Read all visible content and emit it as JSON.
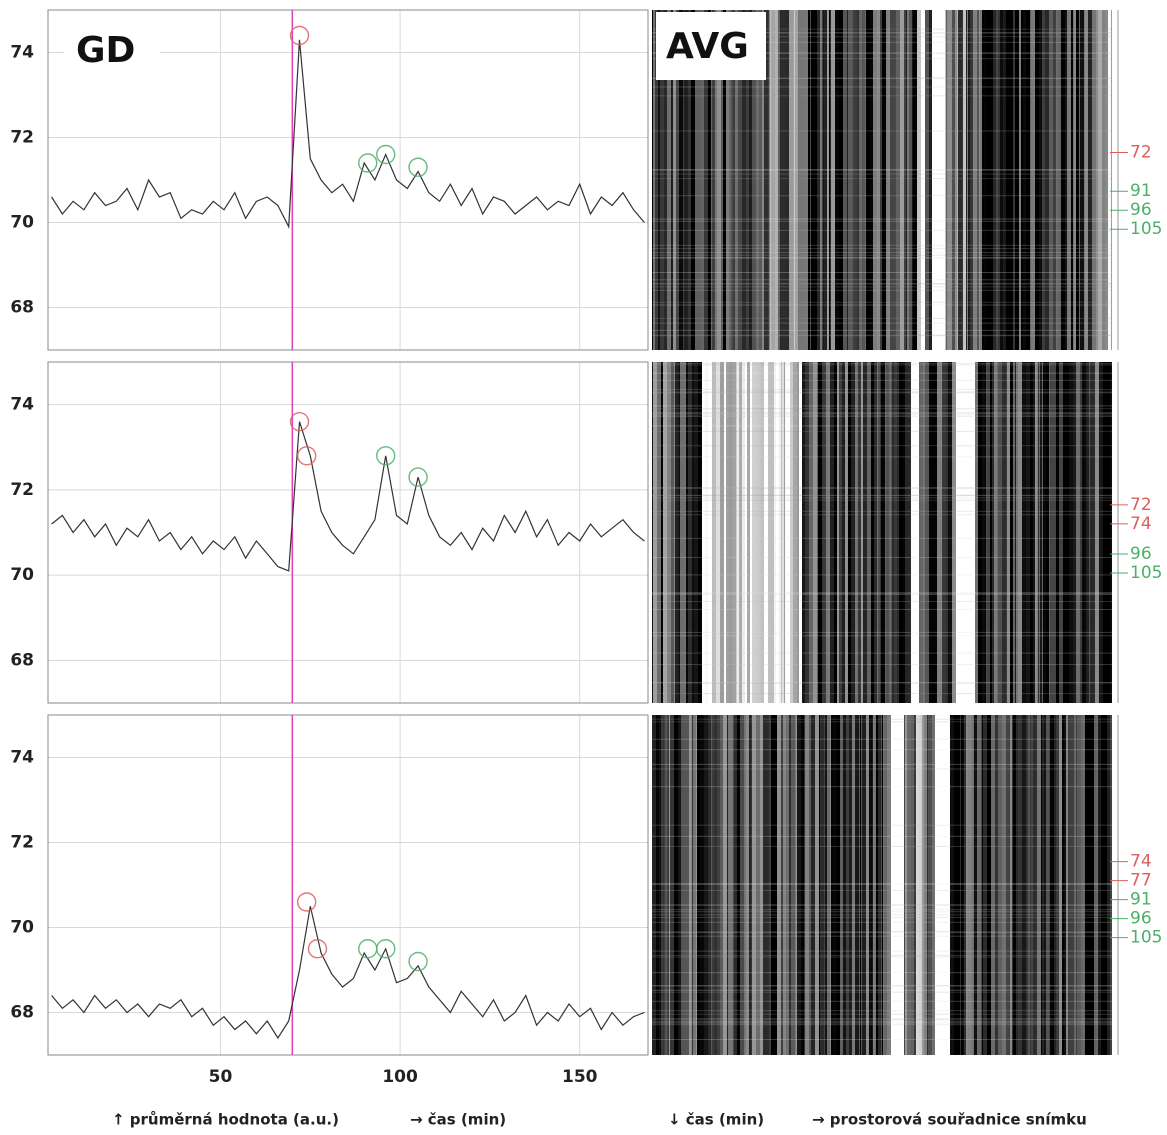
{
  "chart_data": [
    {
      "type": "line",
      "title": "GD",
      "image_label": "AVG",
      "color": "#333333",
      "grid": true,
      "xtick_labels": false,
      "x": [
        3,
        6,
        9,
        12,
        15,
        18,
        21,
        24,
        27,
        30,
        33,
        36,
        39,
        42,
        45,
        48,
        51,
        54,
        57,
        60,
        63,
        66,
        69,
        72,
        75,
        78,
        81,
        84,
        87,
        90,
        93,
        96,
        99,
        102,
        105,
        108,
        111,
        114,
        117,
        120,
        123,
        126,
        129,
        132,
        135,
        138,
        141,
        144,
        147,
        150,
        153,
        156,
        159,
        162,
        165,
        168
      ],
      "values": [
        70.6,
        70.2,
        70.5,
        70.3,
        70.7,
        70.4,
        70.5,
        70.8,
        70.3,
        71.0,
        70.6,
        70.7,
        70.1,
        70.3,
        70.2,
        70.5,
        70.3,
        70.7,
        70.1,
        70.5,
        70.6,
        70.4,
        69.9,
        74.3,
        71.5,
        71.0,
        70.7,
        70.9,
        70.5,
        71.4,
        71.0,
        71.6,
        71.0,
        70.8,
        71.2,
        70.7,
        70.5,
        70.9,
        70.4,
        70.8,
        70.2,
        70.6,
        70.5,
        70.2,
        70.4,
        70.6,
        70.3,
        70.5,
        70.4,
        70.9,
        70.2,
        70.6,
        70.4,
        70.7,
        70.3,
        70.0
      ],
      "xlim": [
        2,
        169
      ],
      "ylim": [
        67,
        75
      ],
      "xticks": [
        50,
        100,
        150
      ],
      "yticks": [
        68,
        70,
        72,
        74
      ],
      "vline": {
        "x": 70,
        "color": "#e040c0"
      },
      "peaks": [
        {
          "x": 72,
          "y": 74.4,
          "color": "#d9605f"
        },
        {
          "x": 91,
          "y": 71.4,
          "color": "#4caf6a"
        },
        {
          "x": 96,
          "y": 71.6,
          "color": "#4caf6a"
        },
        {
          "x": 105,
          "y": 71.3,
          "color": "#4caf6a"
        }
      ]
    },
    {
      "type": "line",
      "color": "#333333",
      "grid": true,
      "xtick_labels": false,
      "x": [
        3,
        6,
        9,
        12,
        15,
        18,
        21,
        24,
        27,
        30,
        33,
        36,
        39,
        42,
        45,
        48,
        51,
        54,
        57,
        60,
        63,
        66,
        69,
        72,
        75,
        78,
        81,
        84,
        87,
        90,
        93,
        96,
        99,
        102,
        105,
        108,
        111,
        114,
        117,
        120,
        123,
        126,
        129,
        132,
        135,
        138,
        141,
        144,
        147,
        150,
        153,
        156,
        159,
        162,
        165,
        168
      ],
      "values": [
        71.2,
        71.4,
        71.0,
        71.3,
        70.9,
        71.2,
        70.7,
        71.1,
        70.9,
        71.3,
        70.8,
        71.0,
        70.6,
        70.9,
        70.5,
        70.8,
        70.6,
        70.9,
        70.4,
        70.8,
        70.5,
        70.2,
        70.1,
        73.6,
        72.8,
        71.5,
        71.0,
        70.7,
        70.5,
        70.9,
        71.3,
        72.8,
        71.4,
        71.2,
        72.3,
        71.4,
        70.9,
        70.7,
        71.0,
        70.6,
        71.1,
        70.8,
        71.4,
        71.0,
        71.5,
        70.9,
        71.3,
        70.7,
        71.0,
        70.8,
        71.2,
        70.9,
        71.1,
        71.3,
        71.0,
        70.8
      ],
      "xlim": [
        2,
        169
      ],
      "ylim": [
        67,
        75
      ],
      "xticks": [
        50,
        100,
        150
      ],
      "yticks": [
        68,
        70,
        72,
        74
      ],
      "vline": {
        "x": 70,
        "color": "#e040c0"
      },
      "peaks": [
        {
          "x": 72,
          "y": 73.6,
          "color": "#d9605f"
        },
        {
          "x": 74,
          "y": 72.8,
          "color": "#d9605f"
        },
        {
          "x": 96,
          "y": 72.8,
          "color": "#4caf6a"
        },
        {
          "x": 105,
          "y": 72.3,
          "color": "#4caf6a"
        }
      ]
    },
    {
      "type": "line",
      "color": "#333333",
      "grid": true,
      "xtick_labels": true,
      "x": [
        3,
        6,
        9,
        12,
        15,
        18,
        21,
        24,
        27,
        30,
        33,
        36,
        39,
        42,
        45,
        48,
        51,
        54,
        57,
        60,
        63,
        66,
        69,
        72,
        75,
        78,
        81,
        84,
        87,
        90,
        93,
        96,
        99,
        102,
        105,
        108,
        111,
        114,
        117,
        120,
        123,
        126,
        129,
        132,
        135,
        138,
        141,
        144,
        147,
        150,
        153,
        156,
        159,
        162,
        165,
        168
      ],
      "values": [
        68.4,
        68.1,
        68.3,
        68.0,
        68.4,
        68.1,
        68.3,
        68.0,
        68.2,
        67.9,
        68.2,
        68.1,
        68.3,
        67.9,
        68.1,
        67.7,
        67.9,
        67.6,
        67.8,
        67.5,
        67.8,
        67.4,
        67.8,
        69.0,
        70.5,
        69.4,
        68.9,
        68.6,
        68.8,
        69.4,
        69.0,
        69.5,
        68.7,
        68.8,
        69.1,
        68.6,
        68.3,
        68.0,
        68.5,
        68.2,
        67.9,
        68.3,
        67.8,
        68.0,
        68.4,
        67.7,
        68.0,
        67.8,
        68.2,
        67.9,
        68.1,
        67.6,
        68.0,
        67.7,
        67.9,
        68.0
      ],
      "xlim": [
        2,
        169
      ],
      "ylim": [
        67,
        75
      ],
      "xticks": [
        50,
        100,
        150
      ],
      "yticks": [
        68,
        70,
        72,
        74
      ],
      "vline": {
        "x": 70,
        "color": "#e040c0"
      },
      "peaks": [
        {
          "x": 74,
          "y": 70.6,
          "color": "#d9605f"
        },
        {
          "x": 77,
          "y": 69.5,
          "color": "#d9605f"
        },
        {
          "x": 91,
          "y": 69.5,
          "color": "#4caf6a"
        },
        {
          "x": 96,
          "y": 69.5,
          "color": "#4caf6a"
        },
        {
          "x": 105,
          "y": 69.2,
          "color": "#4caf6a"
        }
      ]
    }
  ],
  "captions": [
    "↑  průměrná hodnota (a.u.)",
    "→  čas (min)",
    "↓  čas (min)",
    "→  prostorová souřadnice snímku"
  ]
}
